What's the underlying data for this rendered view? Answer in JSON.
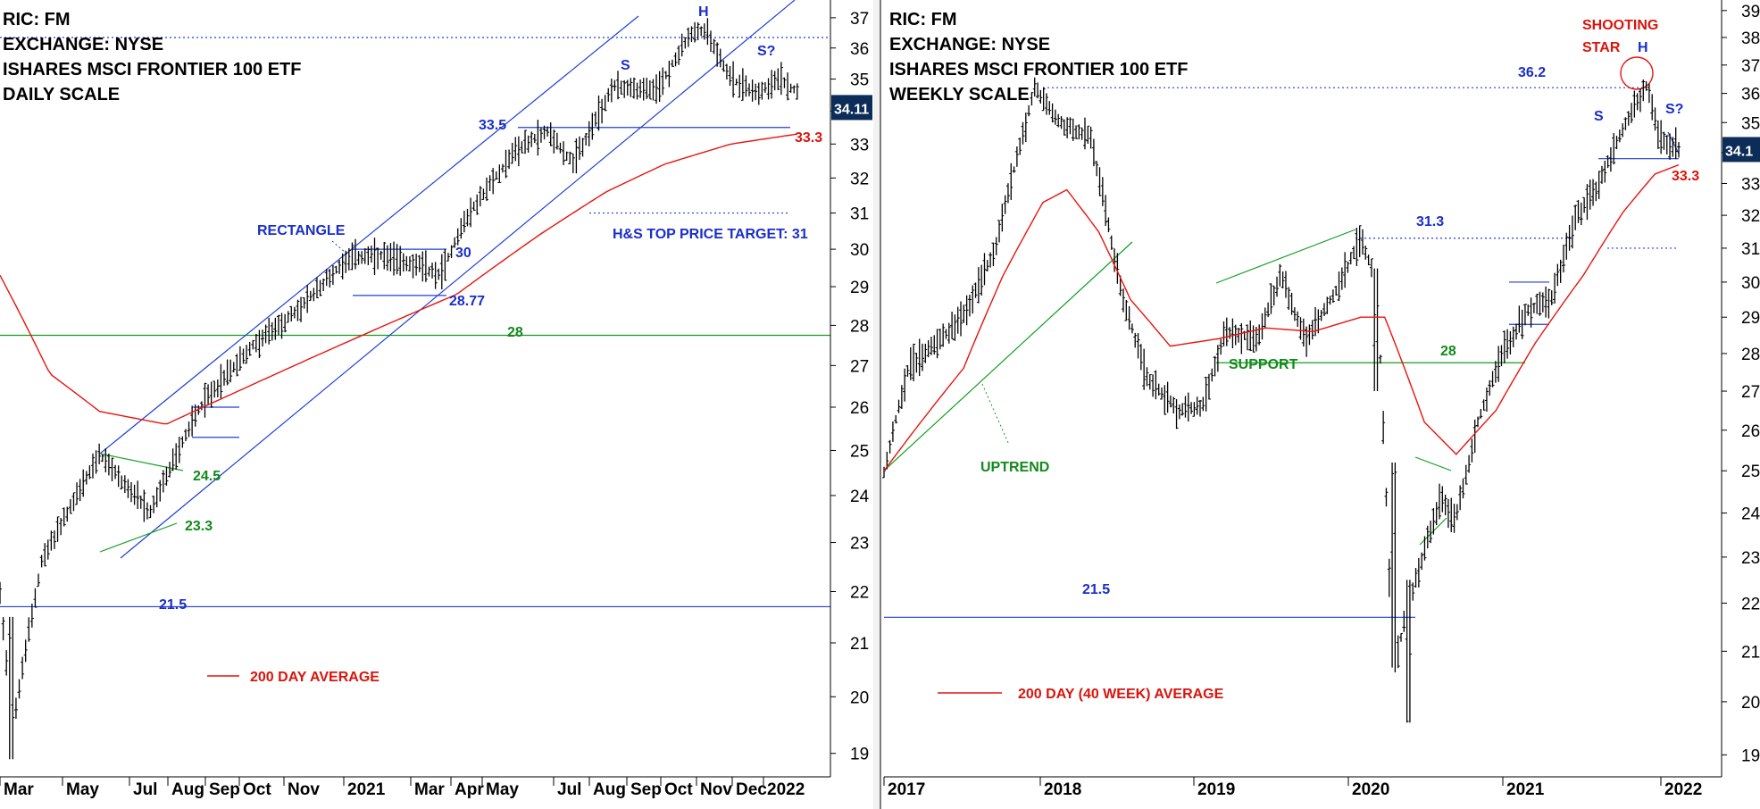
{
  "chart_data": [
    {
      "type": "candlestick",
      "header": [
        "RIC: FM",
        "EXCHANGE: NYSE",
        "ISHARES MSCI FRONTIER 100 ETF",
        "DAILY SCALE"
      ],
      "x_ticks": [
        "Mar",
        "May",
        "Jul",
        "Aug",
        "Sep",
        "Oct",
        "Nov",
        "2021",
        "Mar",
        "Apr",
        "May",
        "Jul",
        "Aug",
        "Sep",
        "Oct",
        "Nov",
        "Dec",
        "2022"
      ],
      "y_ticks": [
        19,
        20,
        21,
        22,
        23,
        24,
        25,
        26,
        27,
        28,
        29,
        30,
        31,
        32,
        33,
        34,
        35,
        36,
        37
      ],
      "ylim": [
        18.6,
        37.6
      ],
      "y_scale": "log",
      "last_price": "34.11",
      "price_path": [
        [
          0,
          22.0
        ],
        [
          0.015,
          19.4
        ],
        [
          0.05,
          22.6
        ],
        [
          0.12,
          24.9
        ],
        [
          0.18,
          23.6
        ],
        [
          0.24,
          26.0
        ],
        [
          0.3,
          27.4
        ],
        [
          0.36,
          28.4
        ],
        [
          0.42,
          29.8
        ],
        [
          0.46,
          29.8
        ],
        [
          0.5,
          29.6
        ],
        [
          0.53,
          29.3
        ],
        [
          0.56,
          30.8
        ],
        [
          0.62,
          32.8
        ],
        [
          0.66,
          33.4
        ],
        [
          0.69,
          32.4
        ],
        [
          0.74,
          34.8
        ],
        [
          0.79,
          34.6
        ],
        [
          0.83,
          36.4
        ],
        [
          0.85,
          36.6
        ],
        [
          0.88,
          35.0
        ],
        [
          0.91,
          34.6
        ],
        [
          0.94,
          35.0
        ],
        [
          0.96,
          34.6
        ]
      ],
      "moving_average_200": [
        [
          0,
          29.3
        ],
        [
          0.06,
          26.8
        ],
        [
          0.12,
          25.9
        ],
        [
          0.2,
          25.6
        ],
        [
          0.3,
          26.5
        ],
        [
          0.42,
          27.6
        ],
        [
          0.55,
          28.8
        ],
        [
          0.65,
          30.4
        ],
        [
          0.73,
          31.6
        ],
        [
          0.8,
          32.4
        ],
        [
          0.88,
          33.0
        ],
        [
          0.96,
          33.3
        ]
      ],
      "annotations": {
        "rectangle": "RECTANGLE",
        "level_30": "30",
        "level_28_77": "28.77",
        "level_33_5": "33.5",
        "level_33_3": "33.3",
        "level_28": "28",
        "level_24_5": "24.5",
        "level_23_3": "23.3",
        "level_21_5": "21.5",
        "target": "H&S TOP PRICE TARGET: 31",
        "s": "S",
        "h": "H",
        "s_q": "S?",
        "legend": "200 DAY AVERAGE"
      }
    },
    {
      "type": "candlestick",
      "header": [
        "RIC: FM",
        "EXCHANGE: NYSE",
        "ISHARES MSCI FRONTIER 100 ETF",
        "WEEKLY SCALE"
      ],
      "x_ticks": [
        "2017",
        "2018",
        "2019",
        "2020",
        "2021",
        "2022"
      ],
      "y_ticks": [
        19,
        20,
        21,
        22,
        23,
        24,
        25,
        26,
        27,
        28,
        29,
        30,
        31,
        32,
        33,
        34,
        35,
        36,
        37,
        38,
        39
      ],
      "ylim": [
        18.6,
        39.4
      ],
      "y_scale": "log",
      "last_price": "34.1",
      "price_path": [
        [
          0,
          25.0
        ],
        [
          0.03,
          27.6
        ],
        [
          0.1,
          29.0
        ],
        [
          0.14,
          31.0
        ],
        [
          0.19,
          36.2
        ],
        [
          0.22,
          35.0
        ],
        [
          0.26,
          34.5
        ],
        [
          0.3,
          29.5
        ],
        [
          0.33,
          27.4
        ],
        [
          0.37,
          26.5
        ],
        [
          0.4,
          26.6
        ],
        [
          0.43,
          28.6
        ],
        [
          0.47,
          28.4
        ],
        [
          0.5,
          30.2
        ],
        [
          0.53,
          28.3
        ],
        [
          0.57,
          29.8
        ],
        [
          0.6,
          31.3
        ],
        [
          0.62,
          30.0
        ],
        [
          0.64,
          20.5
        ],
        [
          0.66,
          22.0
        ],
        [
          0.7,
          24.3
        ],
        [
          0.72,
          23.9
        ],
        [
          0.75,
          26.4
        ],
        [
          0.78,
          28.1
        ],
        [
          0.81,
          29.2
        ],
        [
          0.84,
          29.5
        ],
        [
          0.87,
          31.9
        ],
        [
          0.9,
          33.0
        ],
        [
          0.93,
          34.8
        ],
        [
          0.96,
          36.3
        ],
        [
          0.975,
          34.5
        ],
        [
          1.0,
          34.1
        ]
      ],
      "moving_average_200": [
        [
          0,
          25.0
        ],
        [
          0.05,
          26.3
        ],
        [
          0.1,
          27.6
        ],
        [
          0.15,
          30.2
        ],
        [
          0.2,
          32.4
        ],
        [
          0.23,
          32.8
        ],
        [
          0.27,
          31.5
        ],
        [
          0.31,
          29.5
        ],
        [
          0.36,
          28.2
        ],
        [
          0.42,
          28.4
        ],
        [
          0.48,
          28.7
        ],
        [
          0.54,
          28.6
        ],
        [
          0.6,
          29.0
        ],
        [
          0.63,
          29.0
        ],
        [
          0.68,
          26.2
        ],
        [
          0.72,
          25.4
        ],
        [
          0.77,
          26.5
        ],
        [
          0.82,
          28.3
        ],
        [
          0.88,
          30.2
        ],
        [
          0.93,
          32.1
        ],
        [
          0.97,
          33.3
        ],
        [
          1.0,
          33.6
        ]
      ],
      "annotations": {
        "shooting": "SHOOTING",
        "star": "STAR",
        "h": "H",
        "s": "S",
        "s_q": "S?",
        "level_36_2": "36.2",
        "level_33_3": "33.3",
        "level_31_3": "31.3",
        "level_28": "28",
        "level_21_5": "21.5",
        "support": "SUPPORT",
        "uptrend": "UPTREND",
        "legend": "200 DAY (40 WEEK) AVERAGE"
      }
    }
  ],
  "colors": {
    "blue_line": "#1f3fd8",
    "red_line": "#e8140c",
    "green_line": "#139e22",
    "label_blue": "#1a2ecb",
    "label_green": "#128a1c",
    "label_red": "#d9140c",
    "price_box": "#0c2d57"
  }
}
